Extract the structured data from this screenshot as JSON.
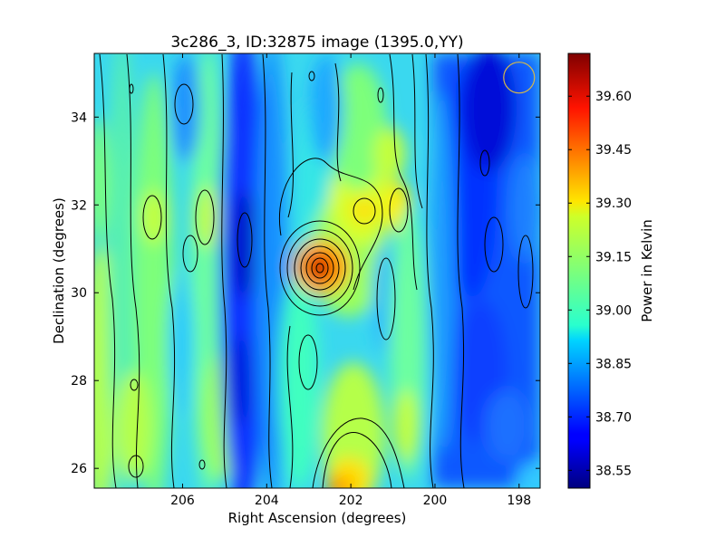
{
  "chart_data": {
    "type": "heatmap",
    "title": "3c286_3, ID:32875 image (1395.0,YY)",
    "xlabel": "Right Ascension (degrees)",
    "ylabel": "Declination (degrees)",
    "xlim": [
      208.1,
      197.5
    ],
    "ylim": [
      25.55,
      35.45
    ],
    "x_ticks": [
      206,
      204,
      202,
      200,
      198
    ],
    "y_ticks": [
      26,
      28,
      30,
      32,
      34
    ],
    "colorbar": {
      "label": "Power in Kelvin",
      "range": [
        38.5,
        39.72
      ],
      "ticks": [
        38.55,
        38.7,
        38.85,
        39.0,
        39.15,
        39.3,
        39.45,
        39.6
      ],
      "tick_labels": [
        "38.55",
        "38.70",
        "38.85",
        "39.00",
        "39.15",
        "39.30",
        "39.45",
        "39.60"
      ],
      "colormap": "jet"
    },
    "contours": "black",
    "peak": {
      "ra": 202.8,
      "dec": 30.55,
      "value": 39.7
    },
    "beam_marker": {
      "ra": 198.0,
      "dec": 34.9,
      "color": "#d4b84a"
    }
  }
}
